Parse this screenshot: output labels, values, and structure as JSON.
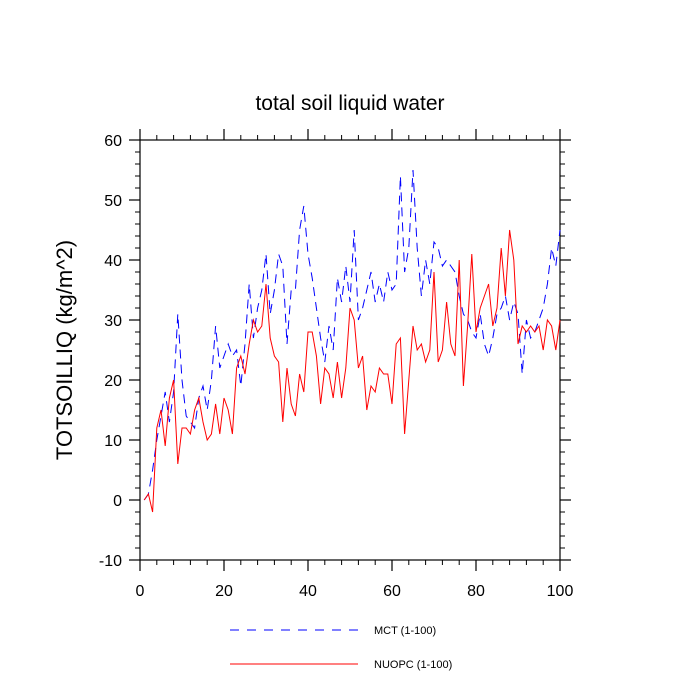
{
  "chart_data": {
    "type": "line",
    "title": "total soil liquid water",
    "xlabel": "",
    "ylabel": "TOTSOILLIQ  (kg/m^2)",
    "xlim": [
      0,
      100
    ],
    "ylim": [
      -10,
      60
    ],
    "xticks": [
      0,
      20,
      40,
      60,
      80,
      100
    ],
    "xtick_labels": [
      "0",
      "20",
      "40",
      "60",
      "80",
      "100"
    ],
    "yticks": [
      -10,
      0,
      10,
      20,
      30,
      40,
      50,
      60
    ],
    "ytick_labels": [
      "-10",
      "0",
      "10",
      "20",
      "30",
      "40",
      "50",
      "60"
    ],
    "grid": false,
    "legend_position": "bottom",
    "x": [
      1,
      2,
      3,
      4,
      5,
      6,
      7,
      8,
      9,
      10,
      11,
      12,
      13,
      14,
      15,
      16,
      17,
      18,
      19,
      20,
      21,
      22,
      23,
      24,
      25,
      26,
      27,
      28,
      29,
      30,
      31,
      32,
      33,
      34,
      35,
      36,
      37,
      38,
      39,
      40,
      41,
      42,
      43,
      44,
      45,
      46,
      47,
      48,
      49,
      50,
      51,
      52,
      53,
      54,
      55,
      56,
      57,
      58,
      59,
      60,
      61,
      62,
      63,
      64,
      65,
      66,
      67,
      68,
      69,
      70,
      71,
      72,
      73,
      74,
      75,
      76,
      77,
      78,
      79,
      80,
      81,
      82,
      83,
      84,
      85,
      86,
      87,
      88,
      89,
      90,
      91,
      92,
      93,
      94,
      95,
      96,
      97,
      98,
      99,
      100
    ],
    "series": [
      {
        "name": "MCT (1-100)",
        "color": "#0000ff",
        "style": "dashed",
        "values": [
          0,
          1,
          5,
          10,
          14,
          18,
          13,
          18,
          31,
          20,
          14,
          13,
          12,
          17,
          19,
          15,
          20,
          29,
          22,
          24,
          26,
          24,
          25,
          19,
          26,
          36,
          27,
          32,
          35,
          41,
          31,
          35,
          41,
          39,
          26,
          35,
          35,
          45,
          49,
          41,
          37,
          32,
          27,
          23,
          29,
          25,
          37,
          33,
          39,
          33,
          45,
          30,
          32,
          35,
          38,
          33,
          36,
          33,
          38,
          35,
          36,
          54,
          38,
          42,
          55,
          42,
          34,
          40,
          36,
          43,
          42,
          39,
          40,
          39,
          38,
          34,
          31,
          30,
          28,
          27,
          31,
          26,
          24,
          27,
          31,
          32,
          34,
          30,
          33,
          31,
          21,
          30,
          27,
          28,
          30,
          32,
          36,
          42,
          39,
          45
        ]
      },
      {
        "name": "NUOPC (1-100)",
        "color": "#ff0000",
        "style": "solid",
        "values": [
          0,
          1,
          -2,
          12,
          15,
          9,
          17,
          20,
          6,
          12,
          12,
          11,
          15,
          17,
          13,
          10,
          11,
          16,
          11,
          17,
          15,
          11,
          22,
          24,
          21,
          26,
          30,
          28,
          29,
          36,
          27,
          24,
          23,
          13,
          22,
          16,
          14,
          21,
          18,
          28,
          28,
          24,
          16,
          22,
          21,
          17,
          23,
          17,
          22,
          32,
          30,
          22,
          24,
          15,
          19,
          18,
          22,
          21,
          21,
          16,
          26,
          27,
          11,
          20,
          29,
          25,
          26,
          23,
          25,
          38,
          23,
          25,
          33,
          26,
          24,
          40,
          19,
          29,
          41,
          28,
          32,
          34,
          36,
          29,
          32,
          42,
          34,
          45,
          40,
          26,
          29,
          28,
          29,
          28,
          29,
          25,
          30,
          29,
          25,
          30
        ]
      }
    ]
  }
}
